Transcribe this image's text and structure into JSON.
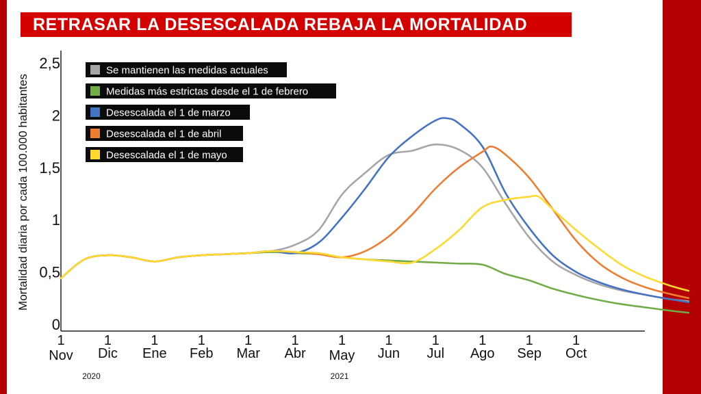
{
  "title": "RETRASAR LA DESESCALADA REBAJA LA MORTALIDAD",
  "chart_data": {
    "type": "line",
    "ylabel": "Mortalidad diaria por cada 100.000 habitantes",
    "ylim": [
      0,
      2.5
    ],
    "y_ticks": [
      "0",
      "0,5",
      "1",
      "1,5",
      "2",
      "2,5"
    ],
    "x_ticks": [
      {
        "day": "1",
        "month": "Nov"
      },
      {
        "day": "1",
        "month": "Dic"
      },
      {
        "day": "1",
        "month": "Ene"
      },
      {
        "day": "1",
        "month": "Feb"
      },
      {
        "day": "1",
        "month": "Mar"
      },
      {
        "day": "1",
        "month": "Abr"
      },
      {
        "day": "1",
        "month": "May"
      },
      {
        "day": "1",
        "month": "Jun"
      },
      {
        "day": "1",
        "month": "Jul"
      },
      {
        "day": "1",
        "month": "Ago"
      },
      {
        "day": "1",
        "month": "Sep"
      },
      {
        "day": "1",
        "month": "Oct"
      }
    ],
    "years": [
      "2020",
      "2021"
    ],
    "legend_position": "top-left",
    "grid": false,
    "series": [
      {
        "name": "Se mantienen las medidas actuales",
        "color": "#a6a6a6",
        "points": [
          [
            0.0,
            0.44
          ],
          [
            0.5,
            0.62
          ],
          [
            1.0,
            0.66
          ],
          [
            1.5,
            0.64
          ],
          [
            2.0,
            0.6
          ],
          [
            2.5,
            0.64
          ],
          [
            3.0,
            0.66
          ],
          [
            3.5,
            0.67
          ],
          [
            4.0,
            0.68
          ],
          [
            4.5,
            0.7
          ],
          [
            5.0,
            0.76
          ],
          [
            5.5,
            0.9
          ],
          [
            6.0,
            1.24
          ],
          [
            6.5,
            1.45
          ],
          [
            7.0,
            1.62
          ],
          [
            7.5,
            1.66
          ],
          [
            8.0,
            1.72
          ],
          [
            8.5,
            1.67
          ],
          [
            9.0,
            1.5
          ],
          [
            9.5,
            1.15
          ],
          [
            10.0,
            0.83
          ],
          [
            10.5,
            0.6
          ],
          [
            11.0,
            0.47
          ],
          [
            11.5,
            0.38
          ],
          [
            12.0,
            0.32
          ],
          [
            12.5,
            0.28
          ],
          [
            13.0,
            0.24
          ],
          [
            13.4,
            0.22
          ]
        ]
      },
      {
        "name": "Medidas más estrictas desde el 1 de febrero",
        "color": "#70ad47",
        "points": [
          [
            0.0,
            0.44
          ],
          [
            0.5,
            0.62
          ],
          [
            1.0,
            0.66
          ],
          [
            1.5,
            0.64
          ],
          [
            2.0,
            0.6
          ],
          [
            2.5,
            0.64
          ],
          [
            3.0,
            0.66
          ],
          [
            3.5,
            0.67
          ],
          [
            4.0,
            0.68
          ],
          [
            4.5,
            0.69
          ],
          [
            5.0,
            0.68
          ],
          [
            5.5,
            0.67
          ],
          [
            6.0,
            0.64
          ],
          [
            6.5,
            0.62
          ],
          [
            7.0,
            0.61
          ],
          [
            7.5,
            0.6
          ],
          [
            8.0,
            0.59
          ],
          [
            8.5,
            0.58
          ],
          [
            9.0,
            0.57
          ],
          [
            9.5,
            0.48
          ],
          [
            10.0,
            0.42
          ],
          [
            10.5,
            0.34
          ],
          [
            11.0,
            0.28
          ],
          [
            11.5,
            0.23
          ],
          [
            12.0,
            0.19
          ],
          [
            12.5,
            0.16
          ],
          [
            13.0,
            0.13
          ],
          [
            13.4,
            0.11
          ]
        ]
      },
      {
        "name": "Desescalada el 1 de marzo",
        "color": "#4472c4",
        "points": [
          [
            0.0,
            0.44
          ],
          [
            0.5,
            0.62
          ],
          [
            1.0,
            0.66
          ],
          [
            1.5,
            0.64
          ],
          [
            2.0,
            0.6
          ],
          [
            2.5,
            0.64
          ],
          [
            3.0,
            0.66
          ],
          [
            3.5,
            0.67
          ],
          [
            4.0,
            0.68
          ],
          [
            4.5,
            0.7
          ],
          [
            5.0,
            0.68
          ],
          [
            5.5,
            0.78
          ],
          [
            6.0,
            1.02
          ],
          [
            6.5,
            1.3
          ],
          [
            7.0,
            1.6
          ],
          [
            7.5,
            1.8
          ],
          [
            8.0,
            1.95
          ],
          [
            8.25,
            1.97
          ],
          [
            8.5,
            1.92
          ],
          [
            9.0,
            1.7
          ],
          [
            9.5,
            1.25
          ],
          [
            10.0,
            0.92
          ],
          [
            10.5,
            0.66
          ],
          [
            11.0,
            0.5
          ],
          [
            11.5,
            0.4
          ],
          [
            12.0,
            0.33
          ],
          [
            12.5,
            0.28
          ],
          [
            13.0,
            0.24
          ],
          [
            13.4,
            0.21
          ]
        ]
      },
      {
        "name": "Desescalada el 1 de abril",
        "color": "#ed7d31",
        "points": [
          [
            0.0,
            0.44
          ],
          [
            0.5,
            0.62
          ],
          [
            1.0,
            0.66
          ],
          [
            1.5,
            0.64
          ],
          [
            2.0,
            0.6
          ],
          [
            2.5,
            0.64
          ],
          [
            3.0,
            0.66
          ],
          [
            3.5,
            0.67
          ],
          [
            4.0,
            0.68
          ],
          [
            4.5,
            0.7
          ],
          [
            5.0,
            0.69
          ],
          [
            5.5,
            0.67
          ],
          [
            6.0,
            0.64
          ],
          [
            6.5,
            0.7
          ],
          [
            7.0,
            0.84
          ],
          [
            7.5,
            1.05
          ],
          [
            8.0,
            1.3
          ],
          [
            8.5,
            1.5
          ],
          [
            9.0,
            1.65
          ],
          [
            9.2,
            1.7
          ],
          [
            9.5,
            1.62
          ],
          [
            10.0,
            1.4
          ],
          [
            10.5,
            1.1
          ],
          [
            11.0,
            0.8
          ],
          [
            11.5,
            0.58
          ],
          [
            12.0,
            0.44
          ],
          [
            12.5,
            0.35
          ],
          [
            13.0,
            0.29
          ],
          [
            13.4,
            0.25
          ]
        ]
      },
      {
        "name": "Desescalada el 1 de mayo",
        "color": "#ffd92f",
        "points": [
          [
            0.0,
            0.44
          ],
          [
            0.5,
            0.62
          ],
          [
            1.0,
            0.66
          ],
          [
            1.5,
            0.64
          ],
          [
            2.0,
            0.6
          ],
          [
            2.5,
            0.64
          ],
          [
            3.0,
            0.66
          ],
          [
            3.5,
            0.67
          ],
          [
            4.0,
            0.68
          ],
          [
            4.5,
            0.7
          ],
          [
            5.0,
            0.69
          ],
          [
            5.5,
            0.68
          ],
          [
            6.0,
            0.64
          ],
          [
            6.5,
            0.62
          ],
          [
            7.0,
            0.6
          ],
          [
            7.5,
            0.59
          ],
          [
            8.0,
            0.72
          ],
          [
            8.5,
            0.9
          ],
          [
            9.0,
            1.12
          ],
          [
            9.5,
            1.19
          ],
          [
            10.0,
            1.22
          ],
          [
            10.2,
            1.22
          ],
          [
            10.5,
            1.1
          ],
          [
            11.0,
            0.9
          ],
          [
            11.5,
            0.72
          ],
          [
            12.0,
            0.56
          ],
          [
            12.5,
            0.45
          ],
          [
            13.0,
            0.37
          ],
          [
            13.4,
            0.32
          ]
        ]
      }
    ]
  }
}
